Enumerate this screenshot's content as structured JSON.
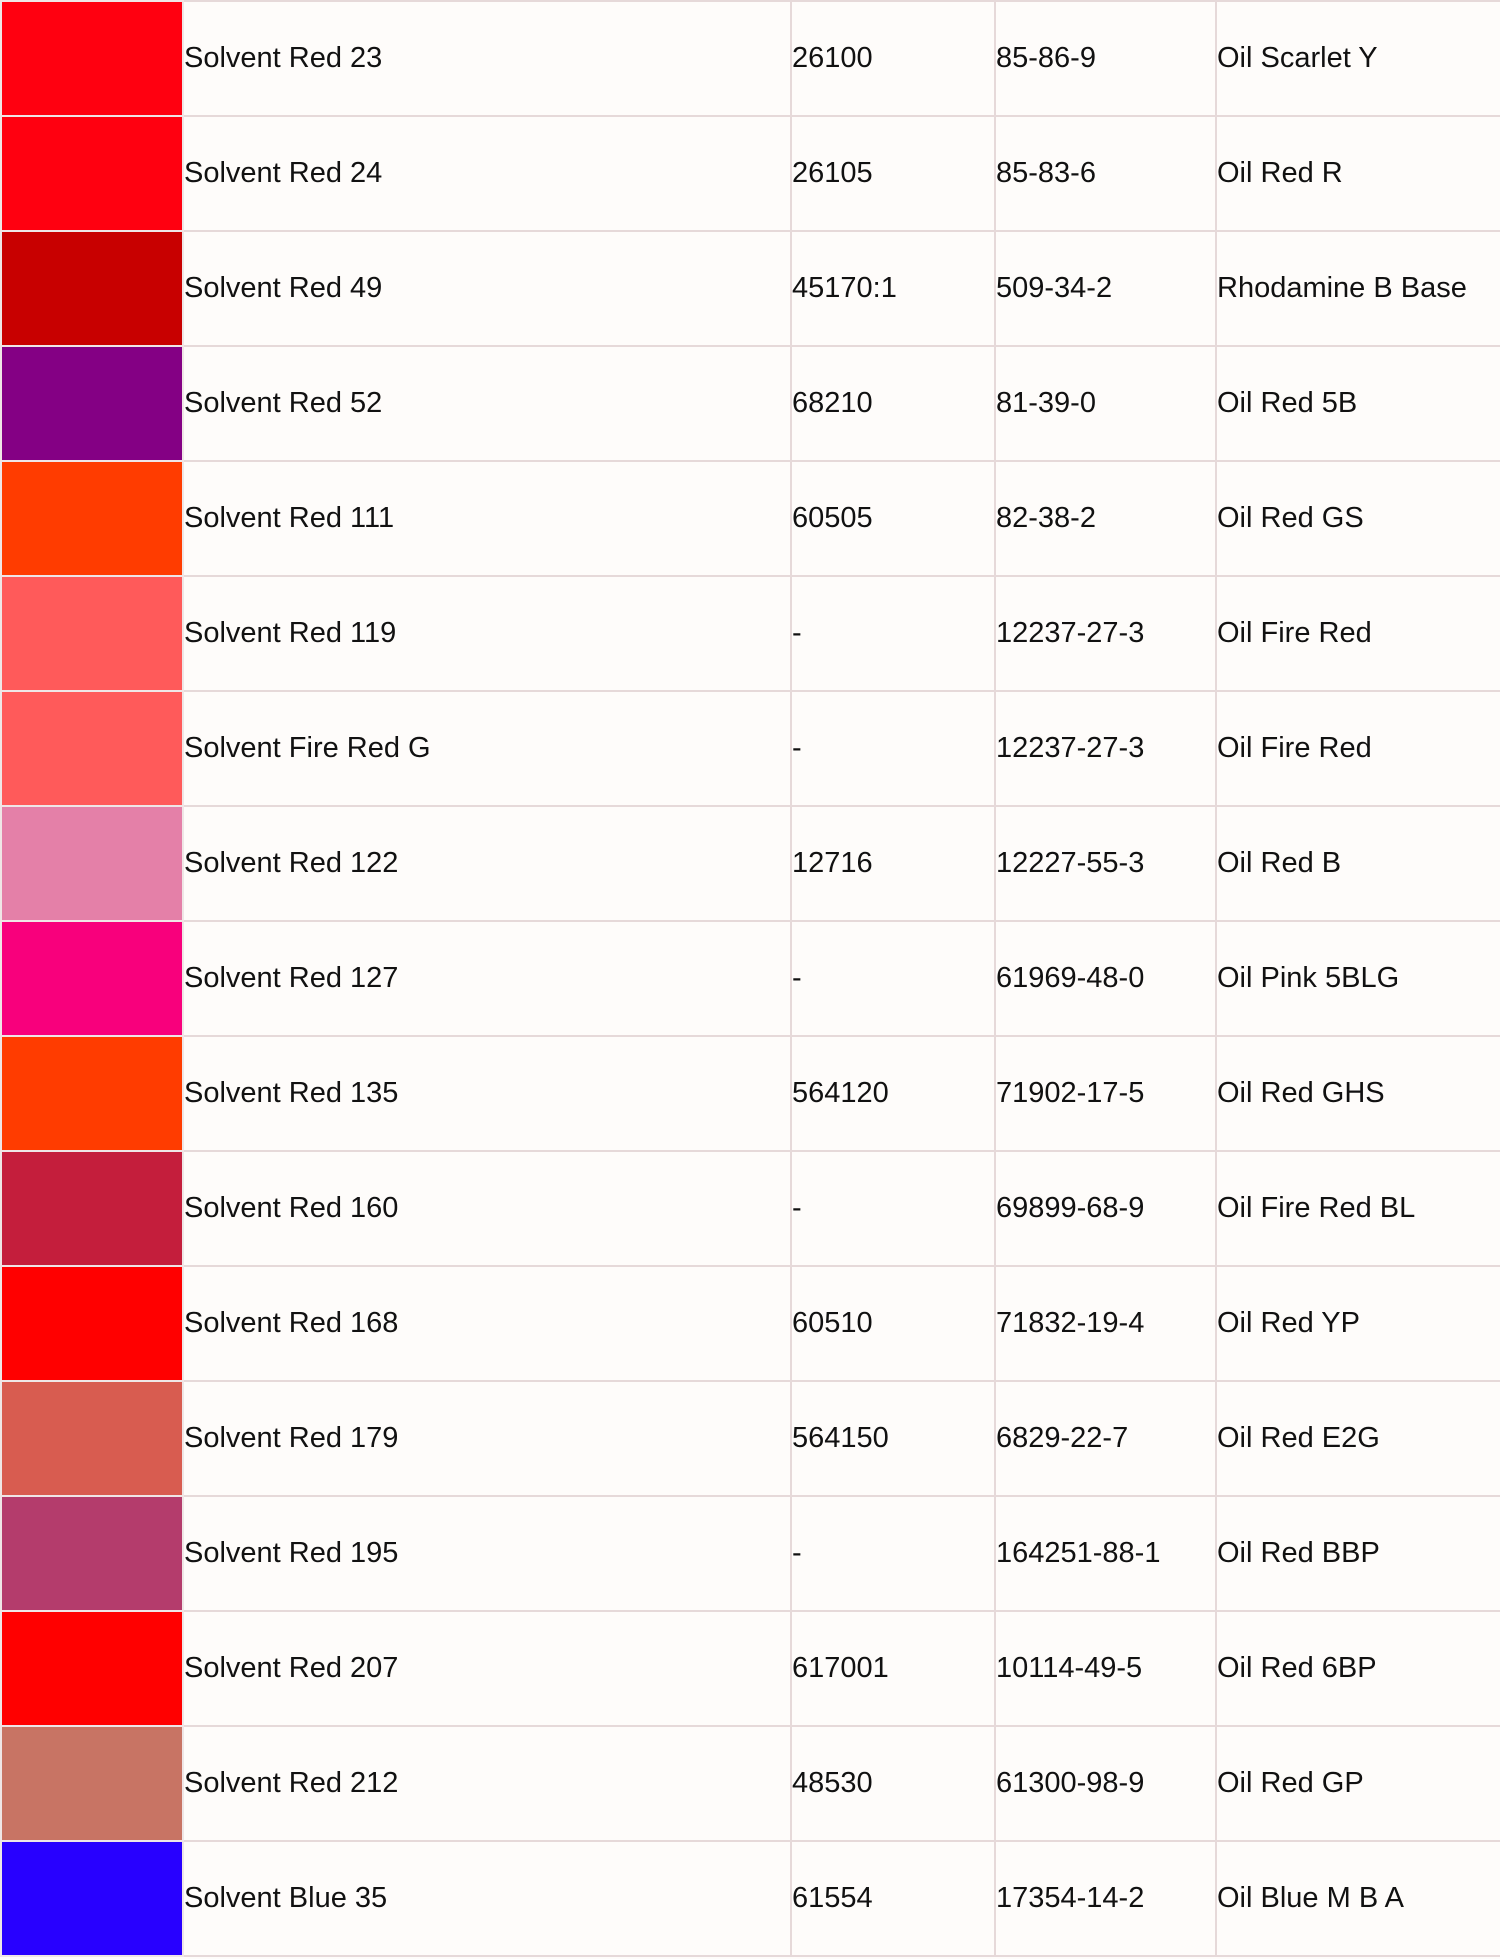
{
  "table": {
    "rows": [
      {
        "color": "#ff0010",
        "name": "Solvent Red 23",
        "ci": "26100",
        "cas": "85-86-9",
        "alias": "Oil Scarlet Y"
      },
      {
        "color": "#ff0010",
        "name": "Solvent Red 24",
        "ci": "26105",
        "cas": "85-83-6",
        "alias": "Oil Red R"
      },
      {
        "color": "#c80000",
        "name": "Solvent Red 49",
        "ci": "45170:1",
        "cas": "509-34-2",
        "alias": "Rhodamine B Base"
      },
      {
        "color": "#840084",
        "name": "Solvent Red 52",
        "ci": "68210",
        "cas": "81-39-0",
        "alias": "Oil Red 5B"
      },
      {
        "color": "#ff3c00",
        "name": "Solvent Red 111",
        "ci": "60505",
        "cas": "82-38-2",
        "alias": "Oil Red GS"
      },
      {
        "color": "#ff5a5a",
        "name": "Solvent Red 119",
        "ci": "-",
        "cas": "12237-27-3",
        "alias": "Oil Fire Red"
      },
      {
        "color": "#ff5a5a",
        "name": "Solvent Fire Red G",
        "ci": "-",
        "cas": "12237-27-3",
        "alias": "Oil Fire Red"
      },
      {
        "color": "#e480a8",
        "name": "Solvent Red 122",
        "ci": "12716",
        "cas": "12227-55-3",
        "alias": "Oil Red B"
      },
      {
        "color": "#f8007c",
        "name": "Solvent Red 127",
        "ci": "-",
        "cas": "61969-48-0",
        "alias": "Oil Pink 5BLG"
      },
      {
        "color": "#ff3c00",
        "name": "Solvent Red 135",
        "ci": "564120",
        "cas": "71902-17-5",
        "alias": "Oil Red GHS"
      },
      {
        "color": "#c41e3c",
        "name": "Solvent Red 160",
        "ci": "-",
        "cas": "69899-68-9",
        "alias": "Oil Fire Red BL"
      },
      {
        "color": "#ff0000",
        "name": "Solvent Red 168",
        "ci": "60510",
        "cas": "71832-19-4",
        "alias": "Oil Red YP"
      },
      {
        "color": "#d85c50",
        "name": "Solvent Red 179",
        "ci": "564150",
        "cas": "6829-22-7",
        "alias": "Oil Red E2G"
      },
      {
        "color": "#b43c6c",
        "name": "Solvent Red 195",
        "ci": "-",
        "cas": "164251-88-1",
        "alias": "Oil Red BBP"
      },
      {
        "color": "#ff0000",
        "name": "Solvent Red 207",
        "ci": "617001",
        "cas": "10114-49-5",
        "alias": "Oil Red 6BP"
      },
      {
        "color": "#c87464",
        "name": "Solvent Red 212",
        "ci": "48530",
        "cas": "61300-98-9",
        "alias": "Oil Red GP"
      },
      {
        "color": "#2800ff",
        "name": "Solvent Blue 35",
        "ci": "61554",
        "cas": "17354-14-2",
        "alias": "Oil Blue M B A"
      }
    ]
  }
}
